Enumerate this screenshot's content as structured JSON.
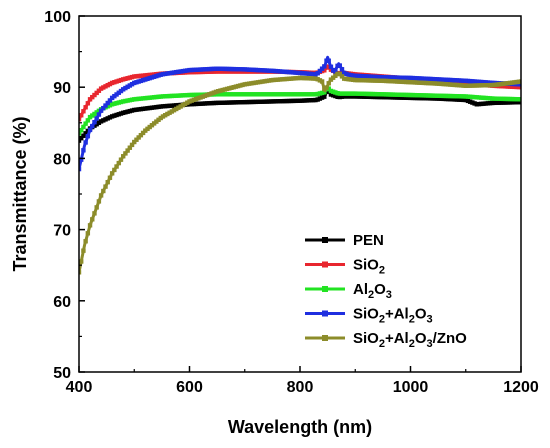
{
  "chart_data": {
    "type": "line",
    "xlabel": "Wavelength (nm)",
    "ylabel": "Transmittance (%)",
    "xlim": [
      400,
      1200
    ],
    "ylim": [
      50,
      100
    ],
    "xticks": [
      400,
      600,
      800,
      1000,
      1200
    ],
    "yticks": [
      50,
      60,
      70,
      80,
      90,
      100
    ],
    "legend_position": "bottom-right",
    "series": [
      {
        "name": "PEN",
        "color": "#000000",
        "marker": "square",
        "x": [
          400,
          420,
          440,
          460,
          480,
          500,
          550,
          600,
          650,
          700,
          750,
          800,
          830,
          845,
          850,
          855,
          870,
          880,
          900,
          950,
          1000,
          1050,
          1100,
          1120,
          1150,
          1200
        ],
        "y": [
          82.5,
          84.2,
          85.2,
          85.9,
          86.4,
          86.8,
          87.3,
          87.6,
          87.8,
          87.9,
          88.0,
          88.1,
          88.2,
          88.7,
          89.8,
          89.0,
          88.6,
          88.7,
          88.7,
          88.6,
          88.5,
          88.4,
          88.2,
          87.6,
          87.8,
          87.9
        ]
      },
      {
        "name": "SiO2",
        "label": "SiO",
        "sub": "2",
        "color": "#e8262e",
        "marker": "square",
        "x": [
          400,
          420,
          440,
          460,
          480,
          500,
          550,
          600,
          650,
          700,
          750,
          800,
          830,
          845,
          850,
          855,
          870,
          880,
          900,
          950,
          1000,
          1050,
          1100,
          1150,
          1200
        ],
        "y": [
          85.5,
          88.3,
          89.8,
          90.6,
          91.1,
          91.5,
          91.9,
          92.1,
          92.2,
          92.2,
          92.2,
          92.1,
          92.0,
          92.4,
          93.0,
          92.5,
          91.9,
          92.0,
          91.8,
          91.5,
          91.2,
          90.9,
          90.5,
          90.2,
          90.0
        ]
      },
      {
        "name": "Al2O3",
        "label": "Al",
        "sub": "2",
        "label2": "O",
        "sub2": "3",
        "color": "#22e322",
        "marker": "square",
        "x": [
          400,
          420,
          440,
          460,
          480,
          500,
          550,
          600,
          650,
          700,
          750,
          800,
          830,
          845,
          850,
          855,
          870,
          880,
          900,
          950,
          1000,
          1050,
          1100,
          1150,
          1200
        ],
        "y": [
          83.5,
          85.8,
          86.9,
          87.6,
          88.0,
          88.3,
          88.7,
          88.9,
          89.0,
          89.0,
          89.0,
          89.0,
          89.0,
          89.3,
          90.0,
          89.5,
          89.1,
          89.1,
          89.1,
          89.0,
          88.9,
          88.8,
          88.7,
          88.4,
          88.3
        ]
      },
      {
        "name": "SiO2+Al2O3",
        "label": "SiO",
        "sub": "2",
        "label2": "+Al",
        "sub2": "2",
        "label3": "O",
        "sub3": "3",
        "color": "#1f2fe0",
        "marker": "square",
        "x": [
          400,
          410,
          420,
          440,
          460,
          480,
          500,
          550,
          600,
          650,
          700,
          750,
          800,
          830,
          845,
          850,
          855,
          862,
          870,
          880,
          890,
          900,
          950,
          1000,
          1050,
          1100,
          1150,
          1200
        ],
        "y": [
          78.5,
          81.8,
          84.0,
          86.7,
          88.5,
          89.7,
          90.6,
          91.8,
          92.4,
          92.6,
          92.5,
          92.3,
          92.0,
          91.8,
          93.0,
          94.2,
          93.0,
          92.1,
          93.3,
          92.0,
          91.7,
          91.6,
          91.4,
          91.3,
          91.1,
          90.9,
          90.6,
          90.4
        ]
      },
      {
        "name": "SiO2+Al2O3/ZnO",
        "label": "SiO",
        "sub": "2",
        "label2": "+Al",
        "sub2": "2",
        "label3": "O",
        "sub3": "3",
        "label4": "/ZnO",
        "color": "#8c8c2a",
        "marker": "square",
        "x": [
          400,
          410,
          420,
          440,
          460,
          480,
          500,
          520,
          550,
          600,
          650,
          700,
          750,
          800,
          830,
          840,
          845,
          855,
          870,
          880,
          900,
          950,
          1000,
          1050,
          1100,
          1150,
          1200
        ],
        "y": [
          64.0,
          67.8,
          70.6,
          74.8,
          77.9,
          80.3,
          82.3,
          83.9,
          85.8,
          88.0,
          89.4,
          90.4,
          91.0,
          91.3,
          91.2,
          90.8,
          89.5,
          91.0,
          92.0,
          91.2,
          91.0,
          90.9,
          90.7,
          90.5,
          90.2,
          90.3,
          90.8
        ]
      }
    ]
  }
}
